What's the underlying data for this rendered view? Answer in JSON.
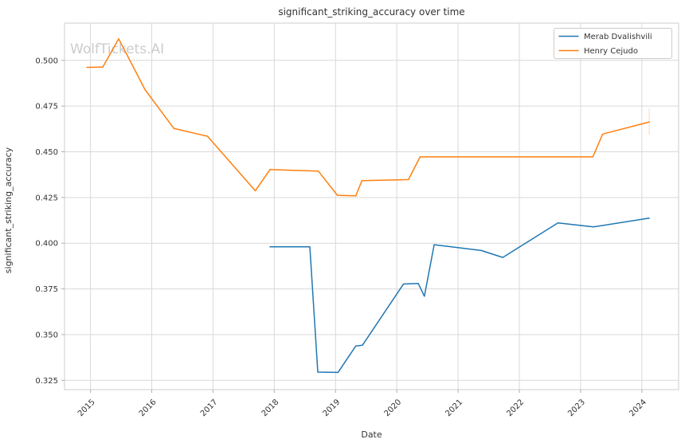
{
  "watermark": "WolfTickets.AI",
  "chart_data": {
    "type": "line",
    "title": "significant_striking_accuracy over time",
    "xlabel": "Date",
    "ylabel": "significant_striking_accuracy",
    "xlim": [
      2014.576,
      2024.6
    ],
    "ylim": [
      0.3199,
      0.5204
    ],
    "x_ticks": [
      2015,
      2016,
      2017,
      2018,
      2019,
      2020,
      2021,
      2022,
      2023,
      2024
    ],
    "x_tick_labels": [
      "2015",
      "2016",
      "2017",
      "2018",
      "2019",
      "2020",
      "2021",
      "2022",
      "2023",
      "2024"
    ],
    "y_ticks": [
      0.325,
      0.35,
      0.375,
      0.4,
      0.425,
      0.45,
      0.475,
      0.5
    ],
    "y_tick_labels": [
      "0.325",
      "0.350",
      "0.375",
      "0.400",
      "0.425",
      "0.450",
      "0.475",
      "0.500"
    ],
    "grid": true,
    "legend_position": "upper right",
    "series": [
      {
        "name": "Merab Dvalishvili",
        "color": "#1f77b4",
        "points": [
          [
            2017.93,
            0.398
          ],
          [
            2018.58,
            0.398
          ],
          [
            2018.71,
            0.3295
          ],
          [
            2019.04,
            0.3293
          ],
          [
            2019.33,
            0.3438
          ],
          [
            2019.44,
            0.3442
          ],
          [
            2020.11,
            0.3777
          ],
          [
            2020.35,
            0.378
          ],
          [
            2020.45,
            0.371
          ],
          [
            2020.61,
            0.3992
          ],
          [
            2021.38,
            0.396
          ],
          [
            2021.73,
            0.3922
          ],
          [
            2022.63,
            0.4111
          ],
          [
            2023.21,
            0.4089
          ],
          [
            2024.12,
            0.4137
          ]
        ]
      },
      {
        "name": "Henry Cejudo",
        "color": "#ff7f0e",
        "points": [
          [
            2014.94,
            0.4962
          ],
          [
            2015.2,
            0.4963
          ],
          [
            2015.46,
            0.5118
          ],
          [
            2015.89,
            0.484
          ],
          [
            2016.36,
            0.4628
          ],
          [
            2016.91,
            0.4585
          ],
          [
            2017.69,
            0.4287
          ],
          [
            2017.93,
            0.4403
          ],
          [
            2018.72,
            0.4394
          ],
          [
            2019.03,
            0.4262
          ],
          [
            2019.33,
            0.4259
          ],
          [
            2019.43,
            0.4342
          ],
          [
            2020.19,
            0.4348
          ],
          [
            2020.38,
            0.4472
          ],
          [
            2023.2,
            0.4472
          ],
          [
            2023.36,
            0.4597
          ],
          [
            2024.12,
            0.4663
          ]
        ]
      }
    ],
    "annotations": [
      {
        "type": "vline",
        "x": 2024.12,
        "y_from": 0.4593,
        "y_to": 0.4737,
        "color": "#ff7f0e",
        "opacity": 0.3
      }
    ],
    "colors": {
      "background": "#ffffff",
      "grid": "#d9d9d9",
      "spine": "#cccccc",
      "tick": "#b0b0b0",
      "text": "#333333",
      "watermark": "#cccccc"
    }
  }
}
